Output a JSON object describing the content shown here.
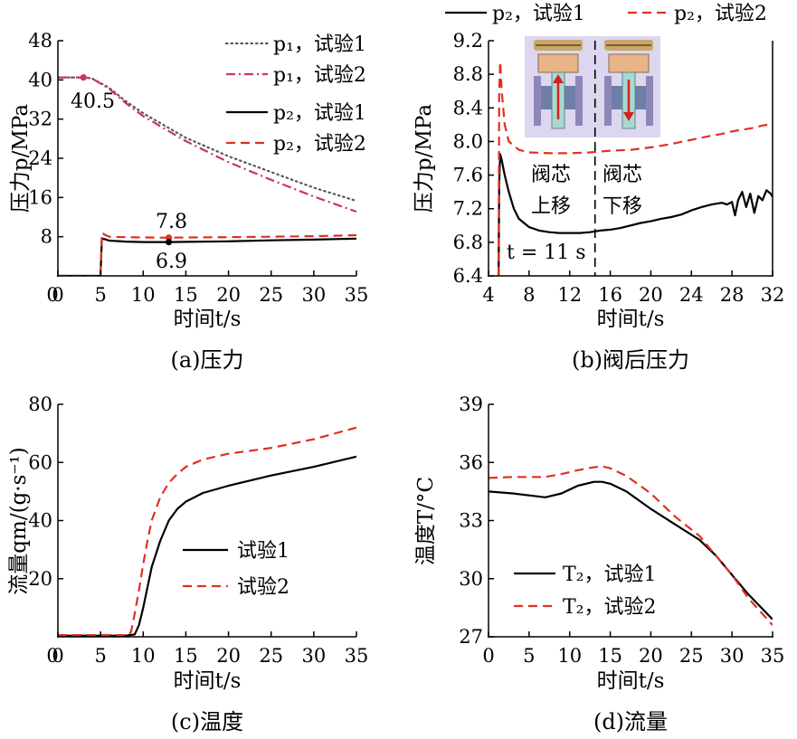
{
  "chart_data": [
    {
      "panel": "a",
      "type": "line",
      "caption": "(a)压力",
      "xlabel": "时间t/s",
      "ylabel": "压力p/MPa",
      "xlim": [
        0,
        35
      ],
      "ylim": [
        0,
        48
      ],
      "xticks": [
        "0",
        "5",
        "10",
        "15",
        "20",
        "25",
        "30",
        "35"
      ],
      "yticks": [
        "8",
        "16",
        "24",
        "32",
        "40",
        "48"
      ],
      "legend_position": "top-right",
      "series": [
        {
          "name": "p₁，试验1",
          "style": "dotted",
          "color": "#555566",
          "x": [
            0,
            3,
            4,
            6,
            8,
            10,
            15,
            20,
            25,
            30,
            35
          ],
          "y": [
            40.5,
            40.5,
            40.3,
            38.4,
            35.6,
            33.2,
            28.2,
            24.4,
            21.2,
            18.0,
            15.3
          ]
        },
        {
          "name": "p₁，试验2",
          "style": "dashdot",
          "color": "#c8336a",
          "x": [
            0,
            3,
            4,
            6,
            8,
            10,
            15,
            20,
            25,
            30,
            35
          ],
          "y": [
            40.5,
            40.5,
            40.3,
            38.2,
            35.2,
            32.6,
            27.5,
            23.2,
            19.6,
            16.2,
            13.1
          ]
        },
        {
          "name": "p₂，试验1",
          "style": "solid",
          "color": "#000000",
          "x": [
            0,
            5.0,
            5.15,
            5.5,
            6,
            8,
            10,
            13,
            15,
            20,
            25,
            30,
            35
          ],
          "y": [
            0,
            0,
            7.6,
            7.5,
            7.2,
            7.0,
            6.9,
            6.9,
            6.95,
            7.05,
            7.25,
            7.4,
            7.6
          ]
        },
        {
          "name": "p₂，试验2",
          "style": "dashed",
          "color": "#e03020",
          "x": [
            0,
            5.0,
            5.15,
            5.5,
            6,
            8,
            10,
            13,
            15,
            20,
            25,
            30,
            35
          ],
          "y": [
            0,
            0,
            8.8,
            8.4,
            8.0,
            7.9,
            7.85,
            7.8,
            7.85,
            7.9,
            8.0,
            8.1,
            8.3
          ]
        }
      ],
      "markers": [
        {
          "x": 3,
          "y": 40.5,
          "color": "#c8336a"
        },
        {
          "x": 13,
          "y": 7.8,
          "color": "#e03020"
        },
        {
          "x": 13,
          "y": 6.9,
          "color": "#000000"
        }
      ],
      "annotations": [
        {
          "text": "40.5",
          "x": 3,
          "y": 40.5
        },
        {
          "text": "7.8",
          "x": 13,
          "y": 7.8
        },
        {
          "text": "6.9",
          "x": 13,
          "y": 6.9
        }
      ]
    },
    {
      "panel": "b",
      "type": "line",
      "caption": "(b)阀后压力",
      "xlabel": "时间t/s",
      "ylabel": "压力p/MPa",
      "xlim": [
        4,
        32
      ],
      "ylim": [
        6.4,
        9.2
      ],
      "xticks": [
        "4",
        "8",
        "12",
        "16",
        "20",
        "24",
        "28",
        "32"
      ],
      "yticks": [
        "6.4",
        "6.8",
        "7.2",
        "7.6",
        "8.0",
        "8.4",
        "8.8",
        "9.2"
      ],
      "legend_position": "top",
      "series": [
        {
          "name": "p₂，试验1",
          "style": "solid",
          "color": "#000000",
          "x": [
            5.0,
            5.05,
            5.15,
            5.3,
            5.6,
            6,
            6.5,
            7,
            8,
            9,
            10,
            11,
            12,
            13,
            14,
            15,
            16,
            17,
            18,
            19,
            20,
            21,
            22,
            23,
            24,
            25,
            26,
            27,
            27.5,
            28,
            28.3,
            28.6,
            29,
            29.4,
            29.8,
            30.2,
            30.6,
            31,
            31.4,
            31.8,
            32
          ],
          "y": [
            6.4,
            7.5,
            7.85,
            7.78,
            7.6,
            7.4,
            7.2,
            7.08,
            6.98,
            6.94,
            6.92,
            6.91,
            6.91,
            6.91,
            6.92,
            6.94,
            6.95,
            6.97,
            7.0,
            7.03,
            7.05,
            7.08,
            7.1,
            7.13,
            7.18,
            7.22,
            7.25,
            7.27,
            7.25,
            7.28,
            7.12,
            7.3,
            7.4,
            7.22,
            7.38,
            7.15,
            7.35,
            7.3,
            7.42,
            7.38,
            7.34
          ]
        },
        {
          "name": "p₂，试验2",
          "style": "dashed",
          "color": "#e03020",
          "x": [
            5.0,
            5.05,
            5.15,
            5.3,
            5.6,
            6,
            7,
            8,
            10,
            12,
            14,
            16,
            18,
            20,
            22,
            24,
            26,
            27,
            28,
            29,
            30,
            31,
            32
          ],
          "y": [
            6.4,
            8.6,
            8.95,
            8.6,
            8.2,
            8.0,
            7.9,
            7.87,
            7.86,
            7.86,
            7.87,
            7.89,
            7.9,
            7.93,
            7.97,
            8.02,
            8.07,
            8.09,
            8.12,
            8.14,
            8.16,
            8.19,
            8.21
          ]
        }
      ],
      "vline_x": 14.5,
      "annotations": [
        {
          "text": "阀芯",
          "x": 6.4,
          "y": 7.77
        },
        {
          "text": "上移",
          "x": 6.4,
          "y": 7.33
        },
        {
          "text": "阀芯",
          "x": 15.5,
          "y": 7.77
        },
        {
          "text": "下移",
          "x": 15.5,
          "y": 7.33
        },
        {
          "text": "t = 11 s",
          "x": 4.4,
          "y": 6.52
        }
      ],
      "inset": "valve-diagrams"
    },
    {
      "panel": "c",
      "type": "line",
      "caption": "(c)温度",
      "xlabel": "时间t/s",
      "ylabel": "流量qm/(g·s⁻¹)",
      "xlim": [
        0,
        35
      ],
      "ylim": [
        0,
        80
      ],
      "xticks": [
        "0",
        "5",
        "10",
        "15",
        "20",
        "25",
        "30",
        "35"
      ],
      "yticks": [
        "20",
        "40",
        "60",
        "80"
      ],
      "legend_position": "center",
      "series": [
        {
          "name": "试验1",
          "style": "solid",
          "color": "#000000",
          "x": [
            0,
            8,
            9,
            9.5,
            10,
            10.5,
            11,
            12,
            13,
            14,
            15,
            17,
            20,
            25,
            30,
            35
          ],
          "y": [
            0.4,
            0.4,
            0.8,
            4,
            10,
            17,
            24,
            33,
            40,
            44,
            46.5,
            49.5,
            52,
            55.5,
            58.5,
            62
          ]
        },
        {
          "name": "试验2",
          "style": "dashed",
          "color": "#e03020",
          "x": [
            0,
            8.3,
            8.6,
            9,
            9.5,
            10,
            10.5,
            11,
            12,
            13,
            14,
            15,
            17,
            20,
            25,
            30,
            35
          ],
          "y": [
            0.6,
            0.6,
            2,
            8,
            16,
            25,
            33,
            40,
            48,
            53,
            56,
            58.5,
            61,
            63,
            65,
            68,
            72
          ]
        }
      ]
    },
    {
      "panel": "d",
      "type": "line",
      "caption": "(d)流量",
      "xlabel": "时间t/s",
      "ylabel": "温度T/°C",
      "xlim": [
        0,
        35
      ],
      "ylim": [
        27,
        39
      ],
      "xticks": [
        "0",
        "5",
        "10",
        "15",
        "20",
        "25",
        "30",
        "35"
      ],
      "yticks": [
        "27",
        "30",
        "33",
        "36",
        "39"
      ],
      "legend_position": "bottom-left",
      "series": [
        {
          "name": "T₂，试验1",
          "style": "solid",
          "color": "#000000",
          "x": [
            0,
            3,
            5,
            7,
            9,
            11,
            13,
            14,
            15,
            17,
            20,
            23,
            26,
            28,
            30,
            32,
            35
          ],
          "y": [
            34.5,
            34.4,
            34.3,
            34.2,
            34.4,
            34.8,
            35.0,
            35.0,
            34.9,
            34.5,
            33.6,
            32.8,
            32.0,
            31.2,
            30.2,
            29.2,
            27.9
          ]
        },
        {
          "name": "T₂，试验2",
          "style": "dashed",
          "color": "#e03020",
          "x": [
            0,
            3,
            7,
            9,
            11,
            13,
            14,
            15,
            17,
            20,
            23,
            26,
            28,
            30,
            32,
            35
          ],
          "y": [
            35.2,
            35.25,
            35.25,
            35.4,
            35.6,
            35.75,
            35.8,
            35.7,
            35.3,
            34.4,
            33.2,
            32.2,
            31.2,
            30.2,
            29.0,
            27.6
          ]
        }
      ]
    }
  ]
}
